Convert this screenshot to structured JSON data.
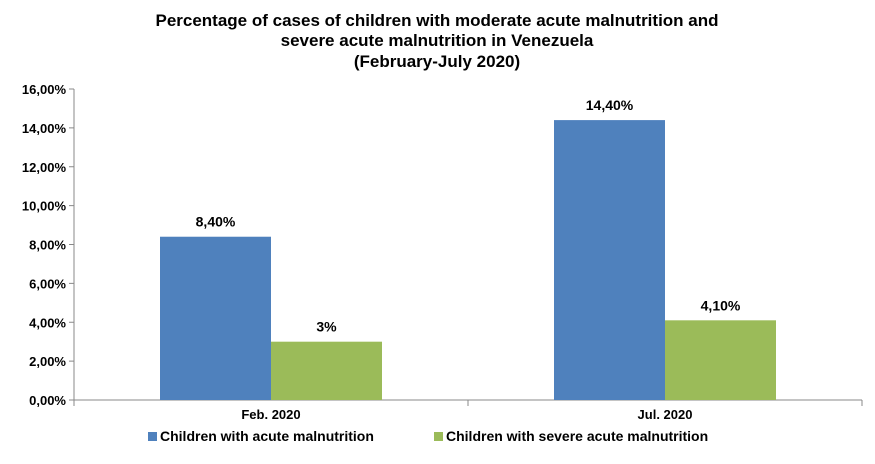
{
  "chart_data": {
    "type": "bar",
    "title_lines": [
      "Percentage of cases of children with moderate acute malnutrition  and",
      "severe acute malnutrition  in Venezuela",
      "(February-July 2020)"
    ],
    "categories": [
      "Feb. 2020",
      "Jul. 2020"
    ],
    "series": [
      {
        "name": "Children with acute malnutrition",
        "values": [
          8.4,
          14.4
        ],
        "labels": [
          "8,40%",
          "14,40%"
        ],
        "color": "#4F81BD"
      },
      {
        "name": "Children with severe acute malnutrition",
        "values": [
          3,
          4.1
        ],
        "labels": [
          "3%",
          "4,10%"
        ],
        "color": "#9BBB59"
      }
    ],
    "y_ticks": [
      {
        "value": 0,
        "label": "0,00%"
      },
      {
        "value": 2,
        "label": "2,00%"
      },
      {
        "value": 4,
        "label": "4,00%"
      },
      {
        "value": 6,
        "label": "6,00%"
      },
      {
        "value": 8,
        "label": "8,00%"
      },
      {
        "value": 10,
        "label": "10,00%"
      },
      {
        "value": 12,
        "label": "12,00%"
      },
      {
        "value": 14,
        "label": "14,00%"
      },
      {
        "value": 16,
        "label": "16,00%"
      }
    ],
    "ylim": [
      0,
      16
    ],
    "grid": false,
    "legend_position": "bottom"
  }
}
